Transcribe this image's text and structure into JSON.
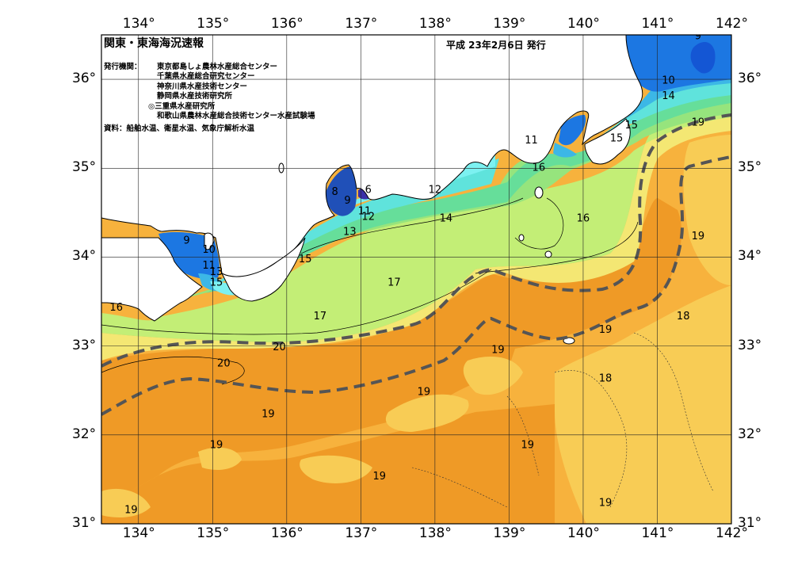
{
  "header": {
    "title": "関東・東海海況速報",
    "date": "平成 23年2月6日 発行"
  },
  "issuers": {
    "label": "発行機関：",
    "orgs": [
      "東京都島しょ農林水産総合センター",
      "千葉県水産総合研究センター",
      "神奈川県水産技術センター",
      "静岡県水産技術研究所",
      "◎三重県水産研究所",
      "和歌山県農林水産総合技術センター水産試験場"
    ]
  },
  "sources": "資料：船舶水温、衛星水温、気象庁解析水温",
  "axes": {
    "lon_top": [
      "134°",
      "135°",
      "136°",
      "137°",
      "138°",
      "139°",
      "140°",
      "141°",
      "142°"
    ],
    "lon_bottom": [
      "134°",
      "135°",
      "136°",
      "137°",
      "138°",
      "139°",
      "140°",
      "141°",
      "142°"
    ],
    "lat_left": [
      "36°",
      "35°",
      "34°",
      "33°",
      "32°",
      "31°"
    ],
    "lat_right": [
      "36°",
      "35°",
      "34°",
      "33°",
      "32°",
      "31°"
    ]
  },
  "temperature_labels": [
    {
      "text": "9",
      "lon": 141.55,
      "lat": 36.45
    },
    {
      "text": "10",
      "lon": 141.15,
      "lat": 35.95
    },
    {
      "text": "14",
      "lon": 141.15,
      "lat": 35.78
    },
    {
      "text": "15",
      "lon": 140.65,
      "lat": 35.45
    },
    {
      "text": "15",
      "lon": 140.45,
      "lat": 35.3
    },
    {
      "text": "19",
      "lon": 141.55,
      "lat": 35.48
    },
    {
      "text": "11",
      "lon": 139.3,
      "lat": 35.28
    },
    {
      "text": "16",
      "lon": 139.4,
      "lat": 34.97
    },
    {
      "text": "16",
      "lon": 140.0,
      "lat": 34.4
    },
    {
      "text": "19",
      "lon": 141.55,
      "lat": 34.2
    },
    {
      "text": "12",
      "lon": 138.0,
      "lat": 34.72
    },
    {
      "text": "14",
      "lon": 138.15,
      "lat": 34.4
    },
    {
      "text": "8",
      "lon": 136.65,
      "lat": 34.7
    },
    {
      "text": "9",
      "lon": 136.82,
      "lat": 34.6
    },
    {
      "text": "6",
      "lon": 137.1,
      "lat": 34.72
    },
    {
      "text": "11",
      "lon": 137.05,
      "lat": 34.48
    },
    {
      "text": "12",
      "lon": 137.1,
      "lat": 34.42
    },
    {
      "text": "13",
      "lon": 136.85,
      "lat": 34.25
    },
    {
      "text": "9",
      "lon": 134.65,
      "lat": 34.15
    },
    {
      "text": "10",
      "lon": 134.95,
      "lat": 34.05
    },
    {
      "text": "11",
      "lon": 134.95,
      "lat": 33.87
    },
    {
      "text": "13",
      "lon": 135.05,
      "lat": 33.8
    },
    {
      "text": "15",
      "lon": 135.05,
      "lat": 33.68
    },
    {
      "text": "15",
      "lon": 136.25,
      "lat": 33.94
    },
    {
      "text": "17",
      "lon": 136.45,
      "lat": 33.3
    },
    {
      "text": "17",
      "lon": 137.45,
      "lat": 33.68
    },
    {
      "text": "16",
      "lon": 133.7,
      "lat": 33.4
    },
    {
      "text": "18",
      "lon": 141.35,
      "lat": 33.3
    },
    {
      "text": "19",
      "lon": 140.3,
      "lat": 33.15
    },
    {
      "text": "19",
      "lon": 138.85,
      "lat": 32.92
    },
    {
      "text": "20",
      "lon": 135.9,
      "lat": 32.95
    },
    {
      "text": "20",
      "lon": 135.15,
      "lat": 32.77
    },
    {
      "text": "18",
      "lon": 140.3,
      "lat": 32.6
    },
    {
      "text": "19",
      "lon": 137.85,
      "lat": 32.45
    },
    {
      "text": "19",
      "lon": 135.75,
      "lat": 32.2
    },
    {
      "text": "19",
      "lon": 135.05,
      "lat": 31.85
    },
    {
      "text": "19",
      "lon": 139.25,
      "lat": 31.85
    },
    {
      "text": "19",
      "lon": 137.25,
      "lat": 31.5
    },
    {
      "text": "19",
      "lon": 140.3,
      "lat": 31.2
    },
    {
      "text": "19",
      "lon": 133.9,
      "lat": 31.12
    }
  ],
  "colors": {
    "sea_19": "#f7b23d",
    "sea_20": "#ef9a26",
    "sea_18": "#f8cc55",
    "sea_17": "#f4e773",
    "sea_16": "#c3ee76",
    "sea_15": "#96e47d",
    "sea_14": "#66de9a",
    "sea_13": "#5fe3dc",
    "sea_12": "#7cf1f1",
    "sea_11": "#3cb7e6",
    "sea_10": "#1c77e2",
    "sea_9": "#1456d4",
    "sea_8": "#2050b8",
    "land": "#ffffff",
    "kuroshio": "#555555"
  }
}
